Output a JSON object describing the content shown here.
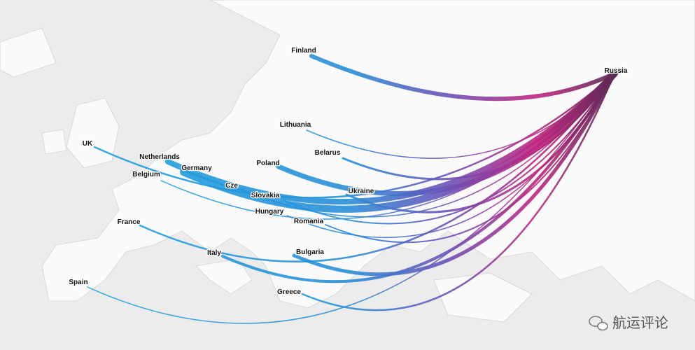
{
  "map": {
    "destination": "Russia",
    "origins": [
      "Finland",
      "Lithuania",
      "UK",
      "Belarus",
      "Netherlands",
      "Poland",
      "Germany",
      "Belgium",
      "Cze",
      "Ukraine",
      "Slovakia",
      "Hungary",
      "France",
      "Romania",
      "Italy",
      "Bulgaria",
      "Spain",
      "Greece"
    ]
  },
  "watermark": "航运评论"
}
